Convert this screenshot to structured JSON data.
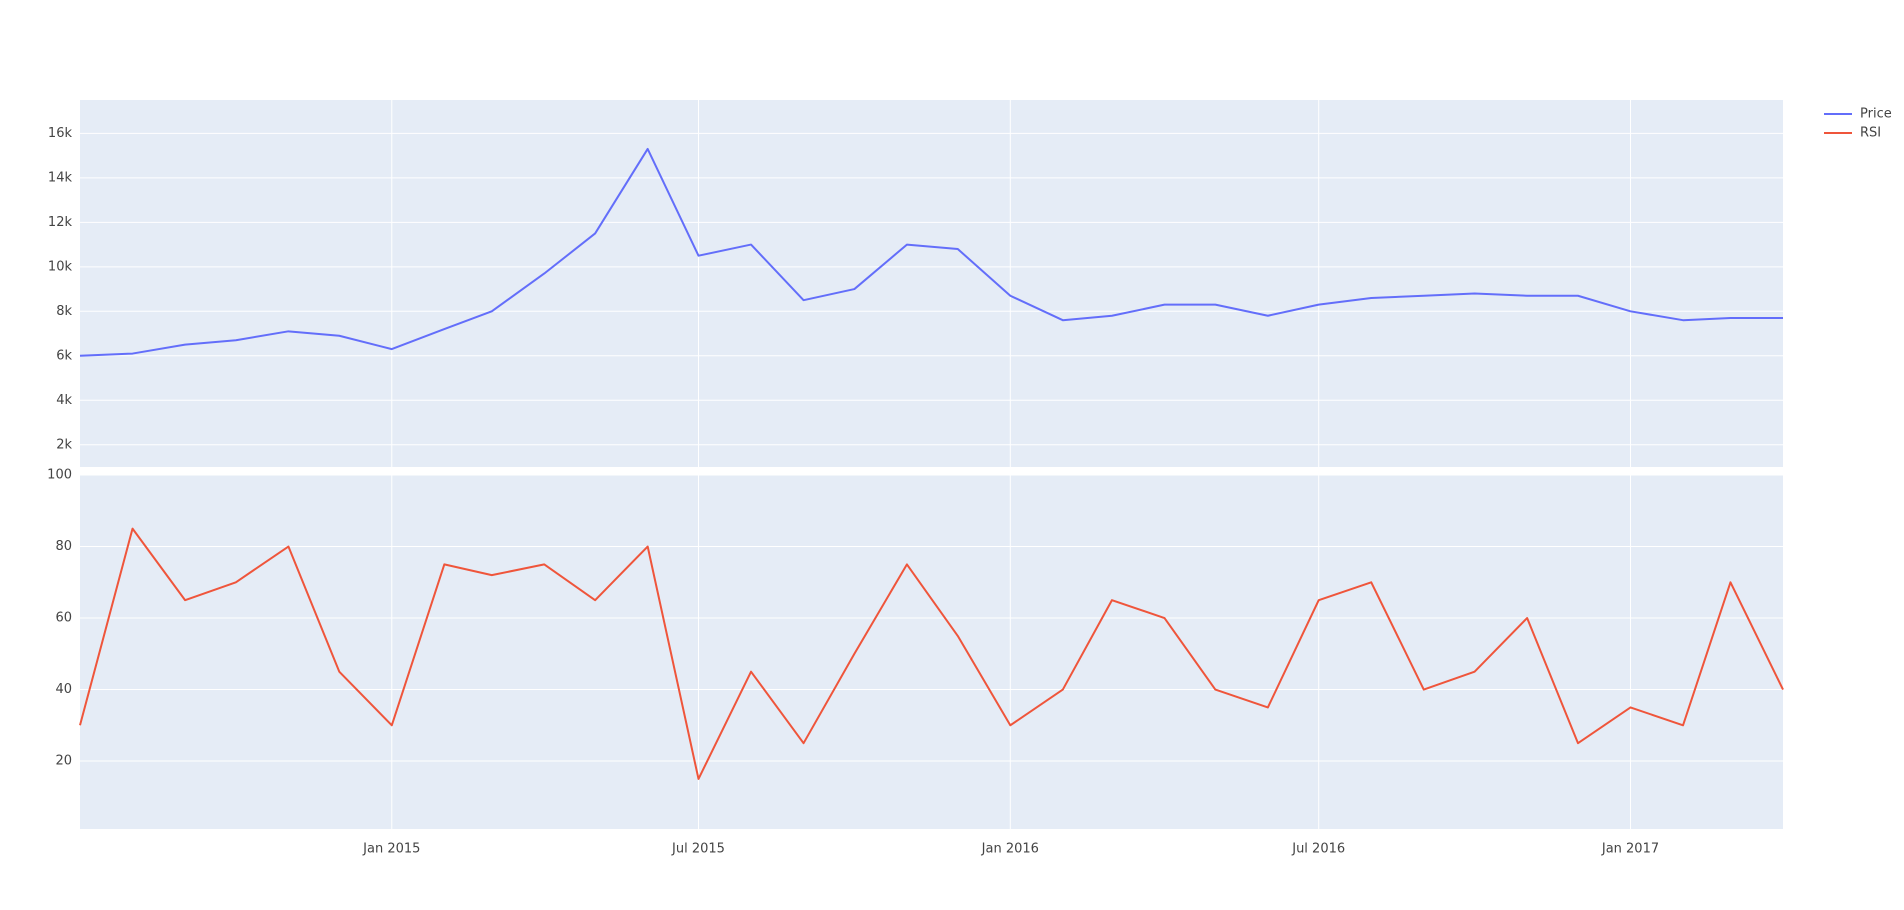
{
  "chart_data": [
    {
      "type": "line",
      "x": [
        "2014-07",
        "2014-08",
        "2014-09",
        "2014-10",
        "2014-11",
        "2014-12",
        "2015-01",
        "2015-02",
        "2015-03",
        "2015-04",
        "2015-05",
        "2015-06",
        "2015-07",
        "2015-08",
        "2015-09",
        "2015-10",
        "2015-11",
        "2015-12",
        "2016-01",
        "2016-02",
        "2016-03",
        "2016-04",
        "2016-05",
        "2016-06",
        "2016-07",
        "2016-08",
        "2016-09",
        "2016-10",
        "2016-11",
        "2016-12",
        "2017-01",
        "2017-02",
        "2017-03",
        "2017-04"
      ],
      "series": [
        {
          "name": "Price",
          "color": "#636efa",
          "values": [
            6000,
            6100,
            6500,
            6700,
            7100,
            6900,
            6300,
            7200,
            8000,
            9700,
            11500,
            15300,
            10500,
            11000,
            8500,
            9000,
            11000,
            10800,
            8700,
            7600,
            7800,
            8300,
            8300,
            7800,
            8300,
            8600,
            8700,
            8800,
            8700,
            8700,
            8000,
            7600,
            7700,
            7700
          ]
        }
      ],
      "xlim": [
        "2014-07",
        "2017-04"
      ],
      "ylim": [
        1000,
        17500
      ],
      "yticks": [
        {
          "value": 2000,
          "label": "2k"
        },
        {
          "value": 4000,
          "label": "4k"
        },
        {
          "value": 6000,
          "label": "6k"
        },
        {
          "value": 8000,
          "label": "8k"
        },
        {
          "value": 10000,
          "label": "10k"
        },
        {
          "value": 12000,
          "label": "12k"
        },
        {
          "value": 14000,
          "label": "14k"
        },
        {
          "value": 16000,
          "label": "16k"
        }
      ],
      "grid": true,
      "legend": "top-right"
    },
    {
      "type": "line",
      "x": [
        "2014-07",
        "2014-08",
        "2014-09",
        "2014-10",
        "2014-11",
        "2014-12",
        "2015-01",
        "2015-02",
        "2015-03",
        "2015-04",
        "2015-05",
        "2015-06",
        "2015-07",
        "2015-08",
        "2015-09",
        "2015-10",
        "2015-11",
        "2015-12",
        "2016-01",
        "2016-02",
        "2016-03",
        "2016-04",
        "2016-05",
        "2016-06",
        "2016-07",
        "2016-08",
        "2016-09",
        "2016-10",
        "2016-11",
        "2016-12",
        "2017-01",
        "2017-02",
        "2017-03",
        "2017-04"
      ],
      "series": [
        {
          "name": "RSI",
          "color": "#EF553B",
          "values": [
            30,
            85,
            65,
            70,
            80,
            45,
            30,
            75,
            72,
            75,
            65,
            80,
            15,
            45,
            25,
            50,
            75,
            55,
            30,
            40,
            65,
            60,
            40,
            35,
            65,
            70,
            40,
            45,
            60,
            25,
            35,
            30,
            70,
            40
          ]
        }
      ],
      "xlim": [
        "2014-07",
        "2017-04"
      ],
      "xticks": [
        {
          "value": "2015-01",
          "label": "Jan 2015"
        },
        {
          "value": "2015-07",
          "label": "Jul 2015"
        },
        {
          "value": "2016-01",
          "label": "Jan 2016"
        },
        {
          "value": "2016-07",
          "label": "Jul 2016"
        },
        {
          "value": "2017-01",
          "label": "Jan 2017"
        }
      ],
      "ylim": [
        1,
        100
      ],
      "yticks": [
        20,
        40,
        60,
        80,
        100
      ],
      "grid": true
    }
  ]
}
